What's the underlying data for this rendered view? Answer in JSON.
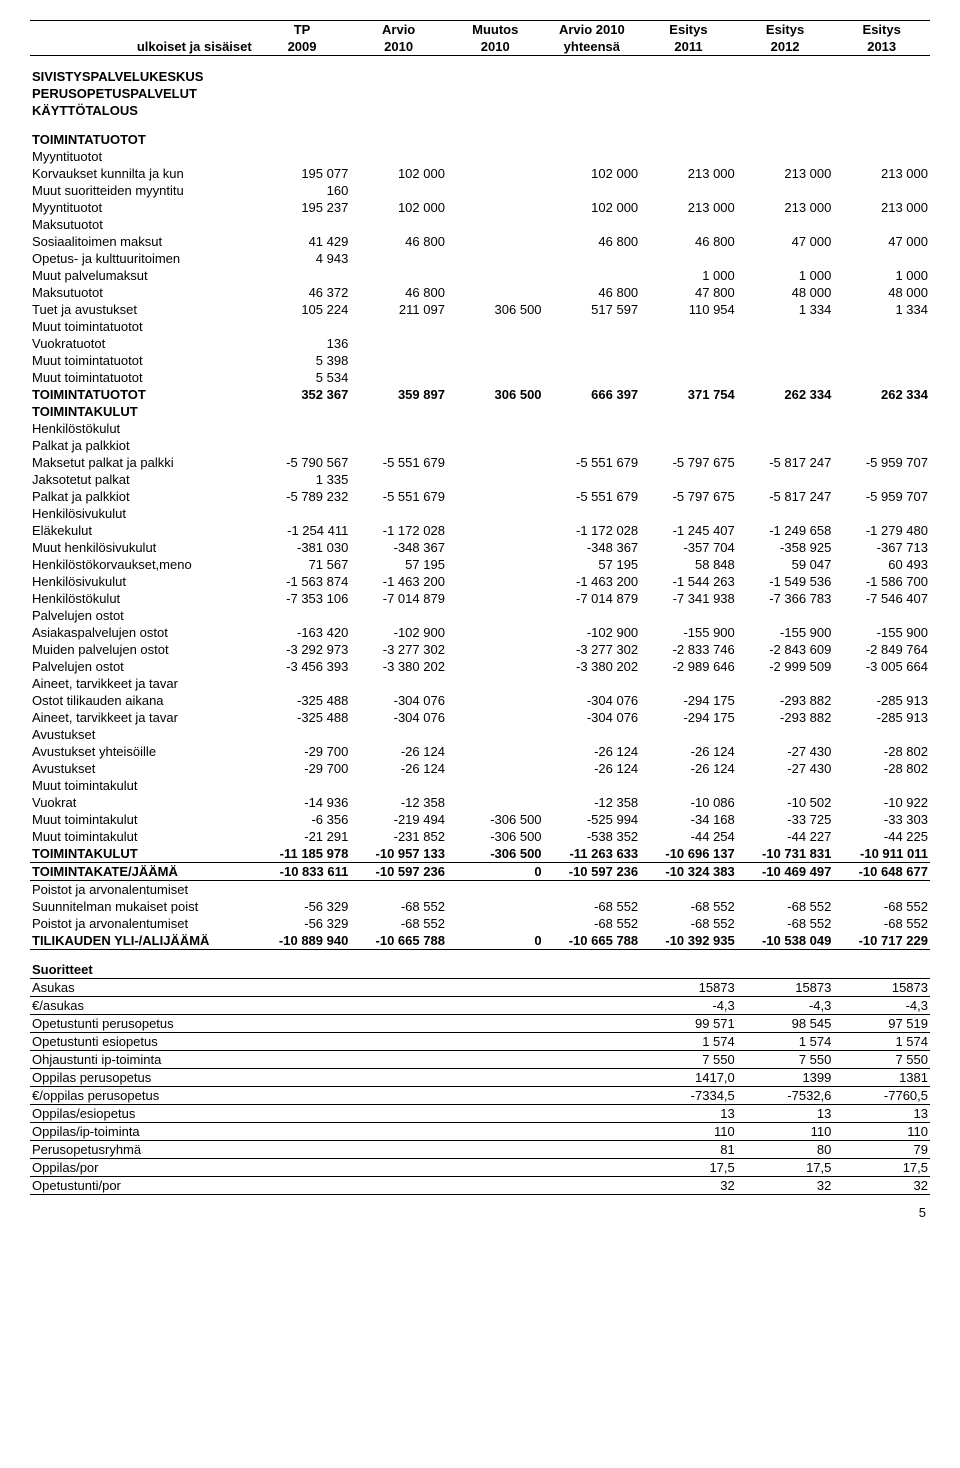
{
  "header": {
    "row1": [
      "",
      "TP",
      "Arvio",
      "Muutos",
      "Arvio 2010",
      "Esitys",
      "Esitys",
      "Esitys"
    ],
    "row2": [
      "ulkoiset ja sisäiset",
      "2009",
      "2010",
      "2010",
      "yhteensä",
      "2011",
      "2012",
      "2013"
    ]
  },
  "section1": [
    "SIVISTYSPALVELUKESKUS",
    "PERUSOPETUSPALVELUT",
    "KÄYTTÖTALOUS"
  ],
  "rows": [
    {
      "label": "TOIMINTATUOTOT",
      "bold": true,
      "v": [
        "",
        "",
        "",
        "",
        "",
        "",
        ""
      ]
    },
    {
      "label": "Myyntituotot",
      "v": [
        "",
        "",
        "",
        "",
        "",
        "",
        ""
      ]
    },
    {
      "label": "Korvaukset kunnilta ja kun",
      "v": [
        "195 077",
        "102 000",
        "",
        "102 000",
        "213 000",
        "213 000",
        "213 000"
      ]
    },
    {
      "label": "Muut suoritteiden myyntitu",
      "v": [
        "160",
        "",
        "",
        "",
        "",
        "",
        ""
      ]
    },
    {
      "label": "Myyntituotot",
      "v": [
        "195 237",
        "102 000",
        "",
        "102 000",
        "213 000",
        "213 000",
        "213 000"
      ]
    },
    {
      "label": "Maksutuotot",
      "v": [
        "",
        "",
        "",
        "",
        "",
        "",
        ""
      ]
    },
    {
      "label": "Sosiaalitoimen maksut",
      "v": [
        "41 429",
        "46 800",
        "",
        "46 800",
        "46 800",
        "47 000",
        "47 000"
      ]
    },
    {
      "label": "Opetus- ja kulttuuritoimen",
      "v": [
        "4 943",
        "",
        "",
        "",
        "",
        "",
        ""
      ]
    },
    {
      "label": "Muut palvelumaksut",
      "v": [
        "",
        "",
        "",
        "",
        "1 000",
        "1 000",
        "1 000"
      ]
    },
    {
      "label": "Maksutuotot",
      "v": [
        "46 372",
        "46 800",
        "",
        "46 800",
        "47 800",
        "48 000",
        "48 000"
      ]
    },
    {
      "label": "Tuet ja avustukset",
      "v": [
        "105 224",
        "211 097",
        "306 500",
        "517 597",
        "110 954",
        "1 334",
        "1 334"
      ]
    },
    {
      "label": "Muut toimintatuotot",
      "v": [
        "",
        "",
        "",
        "",
        "",
        "",
        ""
      ]
    },
    {
      "label": "Vuokratuotot",
      "v": [
        "136",
        "",
        "",
        "",
        "",
        "",
        ""
      ]
    },
    {
      "label": "Muut toimintatuotot",
      "v": [
        "5 398",
        "",
        "",
        "",
        "",
        "",
        ""
      ]
    },
    {
      "label": "Muut toimintatuotot",
      "v": [
        "5 534",
        "",
        "",
        "",
        "",
        "",
        ""
      ]
    },
    {
      "label": "TOIMINTATUOTOT",
      "bold": true,
      "v": [
        "352 367",
        "359 897",
        "306 500",
        "666 397",
        "371 754",
        "262 334",
        "262 334"
      ]
    },
    {
      "label": "TOIMINTAKULUT",
      "bold": true,
      "v": [
        "",
        "",
        "",
        "",
        "",
        "",
        ""
      ]
    },
    {
      "label": "Henkilöstökulut",
      "v": [
        "",
        "",
        "",
        "",
        "",
        "",
        ""
      ]
    },
    {
      "label": "Palkat ja palkkiot",
      "v": [
        "",
        "",
        "",
        "",
        "",
        "",
        ""
      ]
    },
    {
      "label": "Maksetut palkat ja palkki",
      "v": [
        "-5 790 567",
        "-5 551 679",
        "",
        "-5 551 679",
        "-5 797 675",
        "-5 817 247",
        "-5 959 707"
      ]
    },
    {
      "label": "Jaksotetut palkat",
      "v": [
        "1 335",
        "",
        "",
        "",
        "",
        "",
        ""
      ]
    },
    {
      "label": "Palkat ja palkkiot",
      "v": [
        "-5 789 232",
        "-5 551 679",
        "",
        "-5 551 679",
        "-5 797 675",
        "-5 817 247",
        "-5 959 707"
      ]
    },
    {
      "label": "Henkilösivukulut",
      "v": [
        "",
        "",
        "",
        "",
        "",
        "",
        ""
      ]
    },
    {
      "label": "Eläkekulut",
      "v": [
        "-1 254 411",
        "-1 172 028",
        "",
        "-1 172 028",
        "-1 245 407",
        "-1 249 658",
        "-1 279 480"
      ]
    },
    {
      "label": "Muut henkilösivukulut",
      "v": [
        "-381 030",
        "-348 367",
        "",
        "-348 367",
        "-357 704",
        "-358 925",
        "-367 713"
      ]
    },
    {
      "label": "Henkilöstökorvaukset,meno",
      "v": [
        "71 567",
        "57 195",
        "",
        "57 195",
        "58 848",
        "59 047",
        "60 493"
      ]
    },
    {
      "label": "Henkilösivukulut",
      "v": [
        "-1 563 874",
        "-1 463 200",
        "",
        "-1 463 200",
        "-1 544 263",
        "-1 549 536",
        "-1 586 700"
      ]
    },
    {
      "label": "Henkilöstökulut",
      "v": [
        "-7 353 106",
        "-7 014 879",
        "",
        "-7 014 879",
        "-7 341 938",
        "-7 366 783",
        "-7 546 407"
      ]
    },
    {
      "label": "Palvelujen ostot",
      "v": [
        "",
        "",
        "",
        "",
        "",
        "",
        ""
      ]
    },
    {
      "label": "Asiakaspalvelujen ostot",
      "v": [
        "-163 420",
        "-102 900",
        "",
        "-102 900",
        "-155 900",
        "-155 900",
        "-155 900"
      ]
    },
    {
      "label": "Muiden palvelujen ostot",
      "v": [
        "-3 292 973",
        "-3 277 302",
        "",
        "-3 277 302",
        "-2 833 746",
        "-2 843 609",
        "-2 849 764"
      ]
    },
    {
      "label": "Palvelujen ostot",
      "v": [
        "-3 456 393",
        "-3 380 202",
        "",
        "-3 380 202",
        "-2 989 646",
        "-2 999 509",
        "-3 005 664"
      ]
    },
    {
      "label": "Aineet, tarvikkeet ja tavar",
      "v": [
        "",
        "",
        "",
        "",
        "",
        "",
        ""
      ]
    },
    {
      "label": "Ostot tilikauden aikana",
      "v": [
        "-325 488",
        "-304 076",
        "",
        "-304 076",
        "-294 175",
        "-293 882",
        "-285 913"
      ]
    },
    {
      "label": "Aineet, tarvikkeet ja tavar",
      "v": [
        "-325 488",
        "-304 076",
        "",
        "-304 076",
        "-294 175",
        "-293 882",
        "-285 913"
      ]
    },
    {
      "label": "Avustukset",
      "v": [
        "",
        "",
        "",
        "",
        "",
        "",
        ""
      ]
    },
    {
      "label": "Avustukset yhteisöille",
      "v": [
        "-29 700",
        "-26 124",
        "",
        "-26 124",
        "-26 124",
        "-27 430",
        "-28 802"
      ]
    },
    {
      "label": "Avustukset",
      "v": [
        "-29 700",
        "-26 124",
        "",
        "-26 124",
        "-26 124",
        "-27 430",
        "-28 802"
      ]
    },
    {
      "label": "Muut toimintakulut",
      "v": [
        "",
        "",
        "",
        "",
        "",
        "",
        ""
      ]
    },
    {
      "label": "Vuokrat",
      "v": [
        "-14 936",
        "-12 358",
        "",
        "-12 358",
        "-10 086",
        "-10 502",
        "-10 922"
      ]
    },
    {
      "label": "Muut toimintakulut",
      "v": [
        "-6 356",
        "-219 494",
        "-306 500",
        "-525 994",
        "-34 168",
        "-33 725",
        "-33 303"
      ]
    },
    {
      "label": "Muut toimintakulut",
      "v": [
        "-21 291",
        "-231 852",
        "-306 500",
        "-538 352",
        "-44 254",
        "-44 227",
        "-44 225"
      ]
    },
    {
      "label": "TOIMINTAKULUT",
      "bold": true,
      "v": [
        "-11 185 978",
        "-10 957 133",
        "-306 500",
        "-11 263 633",
        "-10 696 137",
        "-10 731 831",
        "-10 911 011"
      ]
    },
    {
      "label": "TOIMINTAKATE/JÄÄMÄ",
      "bold": true,
      "top": true,
      "bot": true,
      "v": [
        "-10 833 611",
        "-10 597 236",
        "0",
        "-10 597 236",
        "-10 324 383",
        "-10 469 497",
        "-10 648 677"
      ]
    },
    {
      "label": "Poistot ja arvonalentumiset",
      "v": [
        "",
        "",
        "",
        "",
        "",
        "",
        ""
      ]
    },
    {
      "label": "Suunnitelman mukaiset poist",
      "v": [
        "-56 329",
        "-68 552",
        "",
        "-68 552",
        "-68 552",
        "-68 552",
        "-68 552"
      ]
    },
    {
      "label": "Poistot ja arvonalentumiset",
      "v": [
        "-56 329",
        "-68 552",
        "",
        "-68 552",
        "-68 552",
        "-68 552",
        "-68 552"
      ]
    },
    {
      "label": "TILIKAUDEN YLI-/ALIJÄÄMÄ",
      "bold": true,
      "bot": true,
      "v": [
        "-10 889 940",
        "-10 665 788",
        "0",
        "-10 665 788",
        "-10 392 935",
        "-10 538 049",
        "-10 717 229"
      ]
    }
  ],
  "suoritteet_title": "Suoritteet",
  "suoritteet": [
    {
      "label": "Asukas",
      "v": [
        "",
        "",
        "",
        "",
        "15873",
        "15873",
        "15873"
      ]
    },
    {
      "label": "€/asukas",
      "v": [
        "",
        "",
        "",
        "",
        "-4,3",
        "-4,3",
        "-4,3"
      ]
    },
    {
      "label": "Opetustunti perusopetus",
      "v": [
        "",
        "",
        "",
        "",
        "99 571",
        "98 545",
        "97 519"
      ]
    },
    {
      "label": "Opetustunti esiopetus",
      "v": [
        "",
        "",
        "",
        "",
        "1 574",
        "1 574",
        "1 574"
      ]
    },
    {
      "label": "Ohjaustunti ip-toiminta",
      "v": [
        "",
        "",
        "",
        "",
        "7 550",
        "7 550",
        "7 550"
      ]
    },
    {
      "label": "Oppilas perusopetus",
      "v": [
        "",
        "",
        "",
        "",
        "1417,0",
        "1399",
        "1381"
      ]
    },
    {
      "label": "€/oppilas perusopetus",
      "v": [
        "",
        "",
        "",
        "",
        "-7334,5",
        "-7532,6",
        "-7760,5"
      ]
    },
    {
      "label": "Oppilas/esiopetus",
      "v": [
        "",
        "",
        "",
        "",
        "13",
        "13",
        "13"
      ]
    },
    {
      "label": "Oppilas/ip-toiminta",
      "v": [
        "",
        "",
        "",
        "",
        "110",
        "110",
        "110"
      ]
    },
    {
      "label": "Perusopetusryhmä",
      "v": [
        "",
        "",
        "",
        "",
        "81",
        "80",
        "79"
      ]
    },
    {
      "label": "Oppilas/por",
      "v": [
        "",
        "",
        "",
        "",
        "17,5",
        "17,5",
        "17,5"
      ]
    },
    {
      "label": "Opetustunti/por",
      "v": [
        "",
        "",
        "",
        "",
        "32",
        "32",
        "32"
      ]
    }
  ],
  "page_num": "5"
}
